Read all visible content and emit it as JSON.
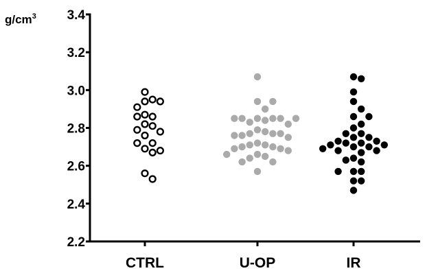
{
  "chart_data": {
    "type": "scatter",
    "title": "",
    "xlabel": "",
    "ylabel": "g/cm³",
    "ylabel_base": "g/cm",
    "ylabel_sup": "3",
    "ylim": [
      2.2,
      3.4
    ],
    "yticks": [
      2.2,
      2.4,
      2.6,
      2.8,
      3.0,
      3.2,
      3.4
    ],
    "ytick_labels": [
      "2.2",
      "2.4",
      "2.6",
      "2.8",
      "3.0",
      "3.2",
      "3.4"
    ],
    "categories": [
      "CTRL",
      "U-OP",
      "IR"
    ],
    "grid": false,
    "legend": "none",
    "series": [
      {
        "category": "CTRL",
        "marker": "open-circle",
        "color": "#000000",
        "values": [
          2.99,
          2.95,
          2.94,
          2.94,
          2.91,
          2.87,
          2.86,
          2.86,
          2.82,
          2.81,
          2.79,
          2.78,
          2.76,
          2.72,
          2.72,
          2.69,
          2.68,
          2.67,
          2.56,
          2.53
        ]
      },
      {
        "category": "U-OP",
        "marker": "filled-circle",
        "color": "#aaaaaa",
        "values": [
          3.07,
          2.94,
          2.94,
          2.9,
          2.85,
          2.85,
          2.85,
          2.85,
          2.85,
          2.85,
          2.84,
          2.83,
          2.82,
          2.79,
          2.78,
          2.77,
          2.77,
          2.77,
          2.76,
          2.76,
          2.75,
          2.72,
          2.71,
          2.71,
          2.7,
          2.7,
          2.69,
          2.69,
          2.68,
          2.66,
          2.66,
          2.65,
          2.64,
          2.62,
          2.62,
          2.57
        ]
      },
      {
        "category": "IR",
        "marker": "filled-circle",
        "color": "#000000",
        "values": [
          3.07,
          3.06,
          2.99,
          2.94,
          2.9,
          2.86,
          2.86,
          2.82,
          2.8,
          2.77,
          2.77,
          2.75,
          2.75,
          2.73,
          2.73,
          2.72,
          2.72,
          2.71,
          2.71,
          2.7,
          2.7,
          2.69,
          2.68,
          2.68,
          2.67,
          2.64,
          2.63,
          2.62,
          2.57,
          2.57,
          2.57,
          2.52,
          2.52,
          2.47
        ]
      }
    ]
  }
}
